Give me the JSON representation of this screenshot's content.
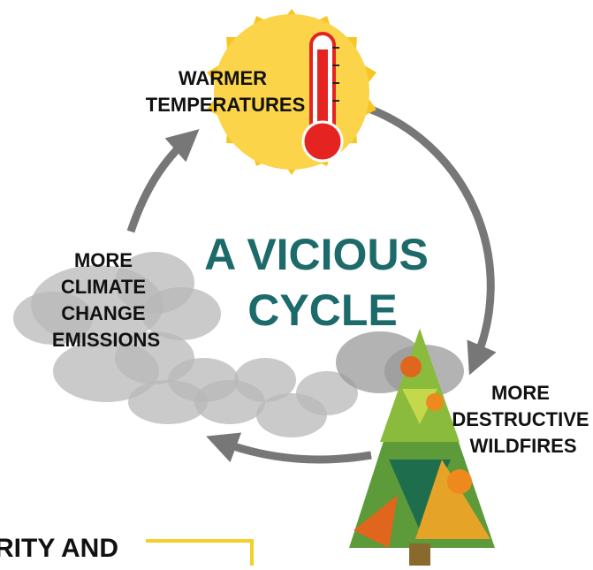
{
  "title": [
    "A VICIOUS",
    "CYCLE"
  ],
  "nodes": [
    {
      "label": [
        "WARMER",
        "TEMPERATURES"
      ]
    },
    {
      "label": [
        "MORE",
        "DESTRUCTIVE",
        "WILDFIRES"
      ]
    },
    {
      "label": [
        "MORE",
        "CLIMATE",
        "CHANGE",
        "EMISSIONS"
      ]
    }
  ],
  "footer_fragment": "RITY AND"
}
